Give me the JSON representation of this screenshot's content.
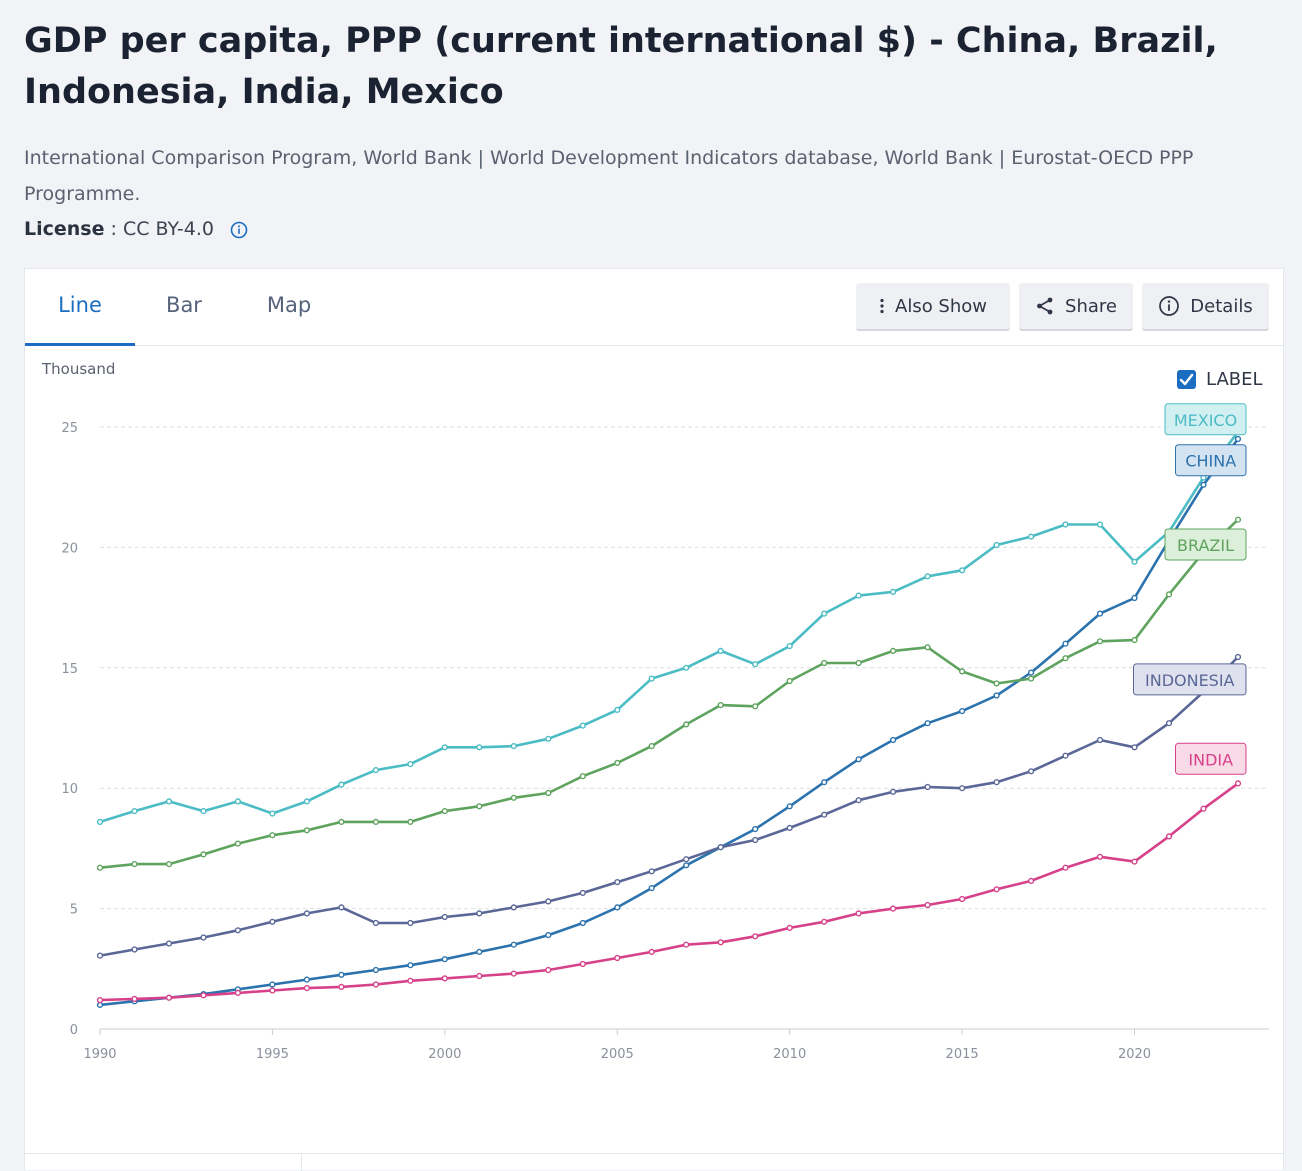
{
  "header": {
    "title": "GDP per capita, PPP (current international $) - China, Brazil, Indonesia, India, Mexico",
    "source": "International Comparison Program, World Bank | World Development Indicators database, World Bank | Eurostat-OECD PPP Programme.",
    "license_label": "License",
    "license_sep": " : ",
    "license_value": "CC BY-4.0"
  },
  "tabs": [
    {
      "label": "Line",
      "active": true
    },
    {
      "label": "Bar",
      "active": false
    },
    {
      "label": "Map",
      "active": false
    }
  ],
  "toolbar": {
    "also_show": "Also Show",
    "share": "Share",
    "details": "Details"
  },
  "label_toggle": {
    "label": "LABEL",
    "checked": true
  },
  "colors": {
    "accent": "#1b6dc1",
    "mexico": "#4bbcc4",
    "china": "#2c72ad",
    "brazil": "#5ea35e",
    "indonesia": "#5a6797",
    "india": "#d6418a"
  },
  "chart_data": {
    "type": "line",
    "title": "",
    "ylabel": "Thousand",
    "xlabel": "",
    "x": [
      1990,
      1991,
      1992,
      1993,
      1994,
      1995,
      1996,
      1997,
      1998,
      1999,
      2000,
      2001,
      2002,
      2003,
      2004,
      2005,
      2006,
      2007,
      2008,
      2009,
      2010,
      2011,
      2012,
      2013,
      2014,
      2015,
      2016,
      2017,
      2018,
      2019,
      2020,
      2021,
      2022,
      2023
    ],
    "xlim": [
      1990,
      2023.9
    ],
    "ylim": [
      0,
      25
    ],
    "xticks": [
      1990,
      1995,
      2000,
      2005,
      2010,
      2015,
      2020
    ],
    "yticks": [
      0,
      5,
      10,
      15,
      20,
      25
    ],
    "grid": true,
    "series": [
      {
        "name": "MEXICO",
        "color_key": "mexico",
        "values": [
          8.6,
          9.05,
          9.45,
          9.05,
          9.45,
          8.95,
          9.45,
          10.15,
          10.75,
          11.0,
          11.7,
          11.7,
          11.75,
          12.05,
          12.6,
          13.25,
          14.55,
          15.0,
          15.7,
          15.15,
          15.9,
          17.25,
          18.0,
          18.15,
          18.8,
          19.05,
          20.1,
          20.45,
          20.95,
          20.95,
          19.4,
          20.65,
          22.9,
          24.8
        ]
      },
      {
        "name": "CHINA",
        "color_key": "china",
        "values": [
          1.0,
          1.15,
          1.3,
          1.45,
          1.65,
          1.85,
          2.05,
          2.25,
          2.45,
          2.65,
          2.9,
          3.2,
          3.5,
          3.9,
          4.4,
          5.05,
          5.85,
          6.8,
          7.55,
          8.3,
          9.25,
          10.25,
          11.2,
          12.0,
          12.7,
          13.2,
          13.85,
          14.8,
          16.0,
          17.25,
          17.9,
          20.3,
          22.6,
          24.5
        ]
      },
      {
        "name": "BRAZIL",
        "color_key": "brazil",
        "values": [
          6.7,
          6.85,
          6.85,
          7.25,
          7.7,
          8.05,
          8.25,
          8.6,
          8.6,
          8.6,
          9.05,
          9.25,
          9.6,
          9.8,
          10.5,
          11.05,
          11.75,
          12.65,
          13.45,
          13.4,
          14.45,
          15.2,
          15.2,
          15.7,
          15.85,
          14.85,
          14.35,
          14.55,
          15.4,
          16.1,
          16.15,
          18.05,
          19.8,
          21.15
        ]
      },
      {
        "name": "INDONESIA",
        "color_key": "indonesia",
        "values": [
          3.05,
          3.3,
          3.55,
          3.8,
          4.1,
          4.45,
          4.8,
          5.05,
          4.4,
          4.4,
          4.65,
          4.8,
          5.05,
          5.3,
          5.65,
          6.1,
          6.55,
          7.05,
          7.55,
          7.85,
          8.35,
          8.9,
          9.5,
          9.85,
          10.05,
          10.0,
          10.25,
          10.7,
          11.35,
          12.0,
          11.7,
          12.7,
          14.0,
          15.45
        ]
      },
      {
        "name": "INDIA",
        "color_key": "india",
        "values": [
          1.2,
          1.25,
          1.3,
          1.4,
          1.5,
          1.6,
          1.7,
          1.75,
          1.85,
          2.0,
          2.1,
          2.2,
          2.3,
          2.45,
          2.7,
          2.95,
          3.2,
          3.5,
          3.6,
          3.85,
          4.2,
          4.45,
          4.8,
          5.0,
          5.15,
          5.4,
          5.8,
          6.15,
          6.7,
          7.15,
          6.95,
          8.0,
          9.15,
          10.2
        ]
      }
    ],
    "labels": [
      {
        "name": "MEXICO",
        "color_key": "mexico",
        "anchor_value": 25.3
      },
      {
        "name": "CHINA",
        "color_key": "china",
        "anchor_value": 23.6
      },
      {
        "name": "BRAZIL",
        "color_key": "brazil",
        "anchor_value": 20.1
      },
      {
        "name": "INDONESIA",
        "color_key": "indonesia",
        "anchor_value": 14.5
      },
      {
        "name": "INDIA",
        "color_key": "india",
        "anchor_value": 11.2
      }
    ]
  }
}
